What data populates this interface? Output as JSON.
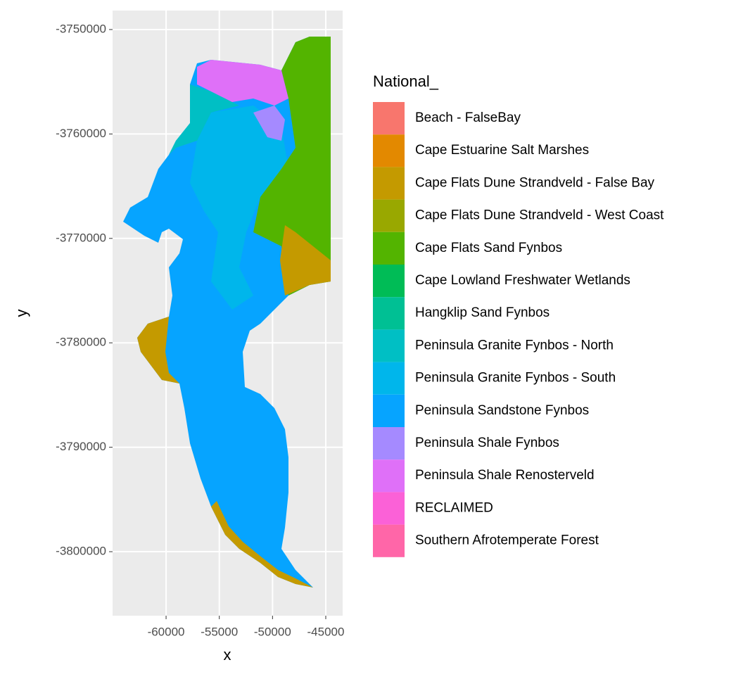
{
  "chart_data": {
    "type": "map",
    "x_label": "x",
    "y_label": "y",
    "xlim": [
      -65026,
      -43413
    ],
    "xticks": [
      -60000,
      -55000,
      -50000,
      -45000
    ],
    "ylim": [
      -3806128,
      -3748182
    ],
    "yticks": [
      -3750000,
      -3760000,
      -3770000,
      -3780000,
      -3790000,
      -3800000
    ],
    "grid": true,
    "legend": {
      "title": "National_",
      "position": "right",
      "entries": [
        {
          "name": "Beach - FalseBay",
          "color": "#F8766D"
        },
        {
          "name": "Cape Estuarine Salt Marshes",
          "color": "#E38900"
        },
        {
          "name": "Cape Flats Dune Strandveld - False Bay",
          "color": "#C49A00"
        },
        {
          "name": "Cape Flats Dune Strandveld - West Coast",
          "color": "#99A800"
        },
        {
          "name": "Cape Flats Sand Fynbos",
          "color": "#53B400"
        },
        {
          "name": "Cape Lowland Freshwater Wetlands",
          "color": "#00BC56"
        },
        {
          "name": "Hangklip Sand Fynbos",
          "color": "#00C094"
        },
        {
          "name": "Peninsula Granite Fynbos - North",
          "color": "#00BFC4"
        },
        {
          "name": "Peninsula Granite Fynbos - South",
          "color": "#00B6EB"
        },
        {
          "name": "Peninsula Sandstone Fynbos",
          "color": "#06A4FF"
        },
        {
          "name": "Peninsula Shale Fynbos",
          "color": "#A58AFF"
        },
        {
          "name": "Peninsula Shale Renosterveld",
          "color": "#DF70F8"
        },
        {
          "name": "RECLAIMED",
          "color": "#FB61D7"
        },
        {
          "name": "Southern Afrotemperate Forest",
          "color": "#FF66A8"
        }
      ]
    }
  }
}
